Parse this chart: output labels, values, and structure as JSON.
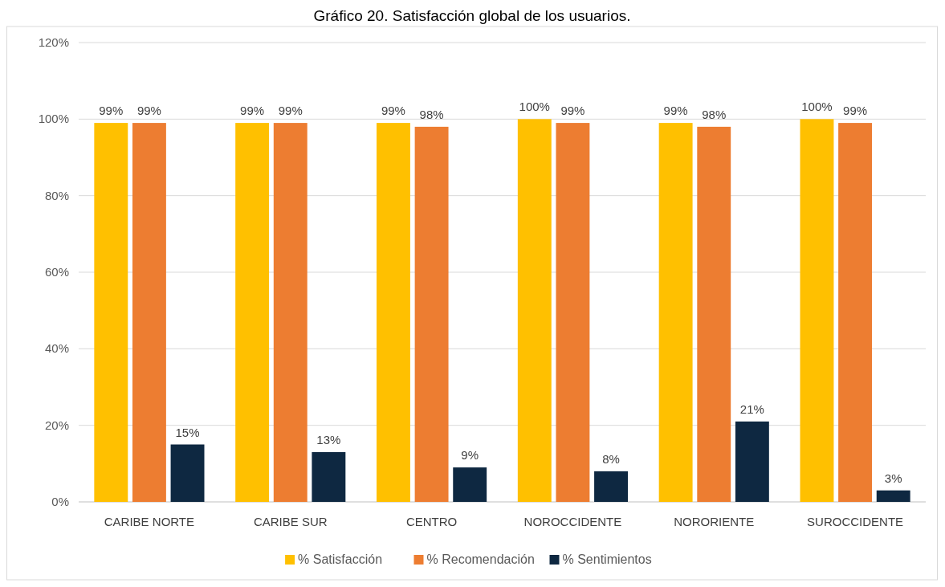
{
  "chart_data": {
    "type": "bar",
    "title": "Gráfico 20. Satisfacción global de los usuarios.",
    "categories": [
      "CARIBE NORTE",
      "CARIBE SUR",
      "CENTRO",
      "NOROCCIDENTE",
      "NORORIENTE",
      "SUROCCIDENTE"
    ],
    "series": [
      {
        "name": "% Satisfacción",
        "color": "#ffc000",
        "values": [
          99,
          99,
          99,
          100,
          99,
          100
        ],
        "value_labels": [
          "99%",
          "99%",
          "99%",
          "100%",
          "99%",
          "100%"
        ]
      },
      {
        "name": "% Recomendación",
        "color": "#ed7d31",
        "values": [
          99,
          99,
          98,
          99,
          98,
          99
        ],
        "value_labels": [
          "99%",
          "99%",
          "98%",
          "99%",
          "98%",
          "99%"
        ]
      },
      {
        "name": "% Sentimientos",
        "color": "#0e2841",
        "values": [
          15,
          13,
          9,
          8,
          21,
          3
        ],
        "value_labels": [
          "15%",
          "13%",
          "9%",
          "8%",
          "21%",
          "3%"
        ]
      }
    ],
    "ylim": [
      0,
      120
    ],
    "yticks": [
      {
        "value": 0,
        "label": "0%"
      },
      {
        "value": 20,
        "label": "20%"
      },
      {
        "value": 40,
        "label": "40%"
      },
      {
        "value": 60,
        "label": "60%"
      },
      {
        "value": 80,
        "label": "80%"
      },
      {
        "value": 100,
        "label": "100%"
      },
      {
        "value": 120,
        "label": "120%"
      }
    ],
    "grid": "y",
    "legend": "bottom"
  }
}
